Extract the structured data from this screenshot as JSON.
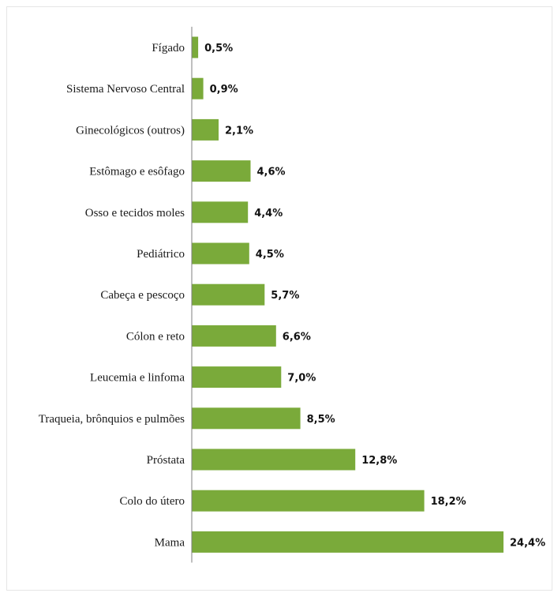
{
  "chart_data": {
    "type": "bar",
    "orientation": "horizontal",
    "categories": [
      "Fígado",
      "Sistema Nervoso Central",
      "Ginecológicos (outros)",
      "Estômago e esôfago",
      "Osso e tecidos moles",
      "Pediátrico",
      "Cabeça e pescoço",
      "Cólon e reto",
      "Leucemia e linfoma",
      "Traqueia, brônquios e pulmões",
      "Próstata",
      "Colo do útero",
      "Mama"
    ],
    "values": [
      0.5,
      0.9,
      2.1,
      4.6,
      4.4,
      4.5,
      5.7,
      6.6,
      7.0,
      8.5,
      12.8,
      18.2,
      24.4
    ],
    "value_labels": [
      "0,5%",
      "0,9%",
      "2,1%",
      "4,6%",
      "4,4%",
      "4,5%",
      "5,7%",
      "6,6%",
      "7,0%",
      "8,5%",
      "12,8%",
      "18,2%",
      "24,4%"
    ],
    "unit": "%",
    "title": "",
    "xlabel": "",
    "ylabel": "",
    "xlim": [
      0,
      24.4
    ],
    "grid": false,
    "legend": "none",
    "bar_color": "#7aaa3a"
  }
}
